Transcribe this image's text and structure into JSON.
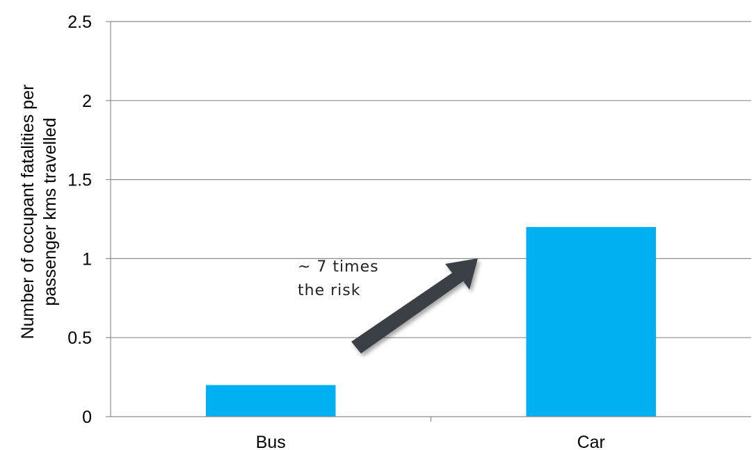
{
  "chart_data": {
    "type": "bar",
    "categories": [
      "Bus",
      "Car"
    ],
    "values": [
      0.2,
      1.2
    ],
    "xlabel": "",
    "ylabel_lines": [
      "Number of occupant fatalities per",
      "passenger kms travelled"
    ],
    "ylim": [
      0,
      2.5
    ],
    "yticks": [
      "0",
      "0.5",
      "1",
      "1.5",
      "2",
      "2.5"
    ],
    "grid": true,
    "legend": "none",
    "bar_color": "#00B0F0",
    "annotation": {
      "lines": [
        "~ 7 times",
        "the risk"
      ],
      "arrow_color": "#3A4146"
    }
  }
}
